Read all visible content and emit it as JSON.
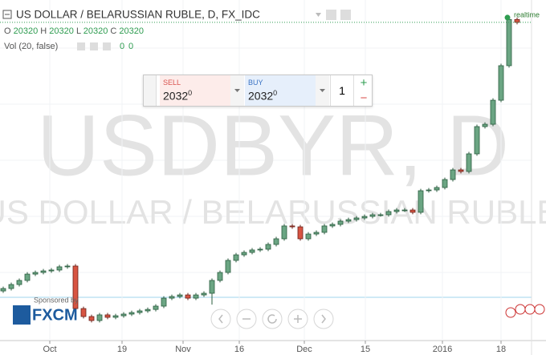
{
  "header": {
    "title": "US DOLLAR / BELARUSSIAN RUBLE, D, FX_IDC",
    "ohlc": [
      {
        "label": "O",
        "value": 20320
      },
      {
        "label": "H",
        "value": 20320
      },
      {
        "label": "L",
        "value": 20320
      },
      {
        "label": "C",
        "value": 20320
      }
    ],
    "volume_label": "Vol (20, false)",
    "volume_values": [
      0,
      0
    ]
  },
  "watermark": {
    "symbol": "USDBYR, D",
    "description": "US DOLLAR / BELARUSSIAN RUBLE"
  },
  "trade_panel": {
    "sell_label": "SELL",
    "sell_price": "2032",
    "sell_sup": "0",
    "buy_label": "BUY",
    "buy_price": "2032",
    "buy_sup": "0",
    "quantity": 1,
    "plus": "+",
    "minus": "−"
  },
  "realtime": "realtime",
  "sponsor": {
    "text": "Sponsored by",
    "brand": "FXCM"
  },
  "chart_data": {
    "type": "candlestick",
    "up_color": "#6ba583",
    "down_color": "#d75442",
    "grid": true,
    "last_price": 20320,
    "xlim": [
      -0.4,
      65.8
    ],
    "ylim": [
      17050,
      20550
    ],
    "xticks": [
      {
        "value": 5.8,
        "label": "Oct"
      },
      {
        "value": 14.8,
        "label": "19"
      },
      {
        "value": 22.4,
        "label": "Nov"
      },
      {
        "value": 29.4,
        "label": "16"
      },
      {
        "value": 37.5,
        "label": "Dec"
      },
      {
        "value": 45.1,
        "label": "15"
      },
      {
        "value": 54.7,
        "label": "2016"
      },
      {
        "value": 62,
        "label": "18"
      }
    ],
    "open": [
      17560,
      17585,
      17626,
      17668,
      17733,
      17750,
      17766,
      17775,
      17808,
      17816,
      17379,
      17297,
      17256,
      17314,
      17289,
      17305,
      17322,
      17338,
      17355,
      17370,
      17404,
      17486,
      17503,
      17519,
      17486,
      17519,
      17536,
      17668,
      17750,
      17874,
      17931,
      17956,
      17981,
      17989,
      18038,
      18096,
      18228,
      18219,
      18096,
      18145,
      18162,
      18228,
      18244,
      18277,
      18293,
      18310,
      18326,
      18343,
      18343,
      18376,
      18392,
      18392,
      18368,
      18590,
      18598,
      18623,
      18705,
      18804,
      18788,
      18969,
      19249,
      19273,
      19520,
      19875,
      20350
    ],
    "high": [
      17605,
      17646,
      17688,
      17753,
      17770,
      17786,
      17795,
      17828,
      17836,
      17836,
      17399,
      17317,
      17334,
      17334,
      17325,
      17342,
      17358,
      17375,
      17390,
      17424,
      17506,
      17523,
      17539,
      17539,
      17539,
      17556,
      17688,
      17770,
      17894,
      17951,
      17976,
      18001,
      18009,
      18058,
      18116,
      18248,
      18248,
      18239,
      18165,
      18182,
      18248,
      18264,
      18297,
      18313,
      18330,
      18346,
      18363,
      18363,
      18396,
      18412,
      18412,
      18412,
      18610,
      18618,
      18643,
      18725,
      18824,
      18824,
      18989,
      19269,
      19293,
      19540,
      19895,
      20370,
      20370
    ],
    "low": [
      17540,
      17565,
      17606,
      17648,
      17713,
      17730,
      17746,
      17755,
      17788,
      17359,
      17277,
      17236,
      17236,
      17269,
      17269,
      17285,
      17302,
      17318,
      17335,
      17350,
      17384,
      17466,
      17483,
      17466,
      17466,
      17499,
      17420,
      17648,
      17730,
      17854,
      17911,
      17936,
      17961,
      17969,
      18018,
      18076,
      18199,
      18076,
      18076,
      18125,
      18142,
      18208,
      18224,
      18257,
      18273,
      18290,
      18306,
      18323,
      18323,
      18356,
      18372,
      18348,
      18348,
      18570,
      18578,
      18603,
      18685,
      18768,
      18768,
      18949,
      19229,
      19253,
      19500,
      19855,
      20300
    ],
    "close": [
      17585,
      17626,
      17668,
      17733,
      17750,
      17766,
      17775,
      17808,
      17816,
      17379,
      17297,
      17256,
      17314,
      17289,
      17305,
      17322,
      17338,
      17355,
      17370,
      17404,
      17486,
      17503,
      17519,
      17486,
      17519,
      17536,
      17668,
      17750,
      17874,
      17931,
      17956,
      17981,
      17989,
      18038,
      18096,
      18228,
      18219,
      18096,
      18145,
      18162,
      18228,
      18244,
      18277,
      18293,
      18310,
      18326,
      18343,
      18343,
      18376,
      18392,
      18392,
      18368,
      18590,
      18598,
      18623,
      18705,
      18804,
      18788,
      18969,
      19249,
      19273,
      19520,
      19875,
      20350,
      20320
    ]
  }
}
